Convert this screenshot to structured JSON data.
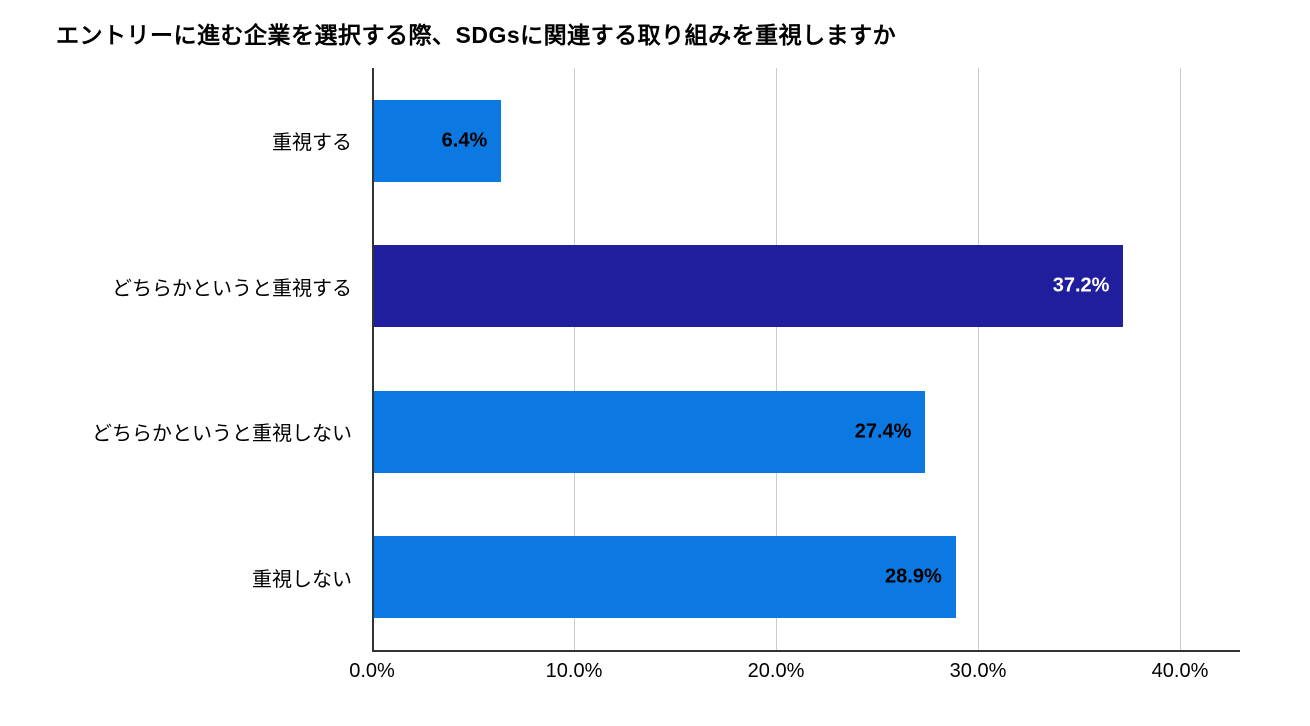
{
  "chart_data": {
    "type": "bar",
    "orientation": "horizontal",
    "title": "エントリーに進む企業を選択する際、SDGsに関連する取り組みを重視しますか",
    "categories": [
      "重視する",
      "どちらかというと重視する",
      "どちらかというと重視しない",
      "重視しない"
    ],
    "values": [
      6.4,
      37.2,
      27.4,
      28.9
    ],
    "data_labels": [
      "6.4%",
      "37.2%",
      "27.4%",
      "28.9%"
    ],
    "bar_colors": [
      "#0b79e1",
      "#211e9e",
      "#0b79e1",
      "#0b79e1"
    ],
    "data_label_colors": [
      "#000000",
      "#ffffff",
      "#000000",
      "#000000"
    ],
    "xlabel": "",
    "ylabel": "",
    "xlim": [
      0,
      40
    ],
    "x_ticks": [
      {
        "label": "0.0%",
        "value": 0
      },
      {
        "label": "10.0%",
        "value": 10
      },
      {
        "label": "20.0%",
        "value": 20
      },
      {
        "label": "30.0%",
        "value": 30
      },
      {
        "label": "40.0%",
        "value": 40
      }
    ],
    "grid": "vertical",
    "legend": "none",
    "colors": {
      "bar_primary": "#0b79e1",
      "bar_highlight": "#211e9e",
      "gridline": "#cccccc",
      "axis_line": "#333333",
      "background": "#ffffff",
      "text": "#000000"
    }
  }
}
